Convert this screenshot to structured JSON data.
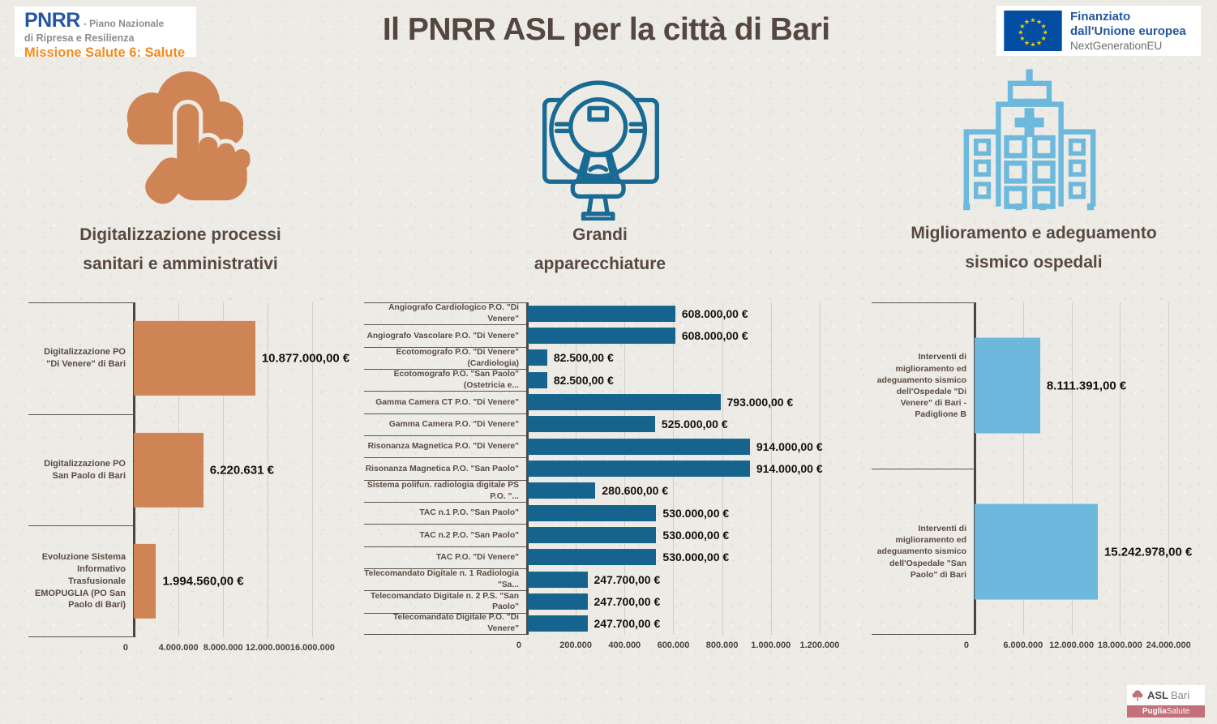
{
  "title": "Il PNRR ASL per la città di Bari",
  "logo_pnrr": {
    "name": "PNRR",
    "line1_suffix": "- Piano Nazionale",
    "line2": "di Ripresa e Resilienza",
    "line3": "Missione Salute 6: Salute",
    "colors": {
      "name_blue": "#2457a0",
      "mission_orange": "#f28b1f",
      "text_gray": "#8c8c8c"
    }
  },
  "logo_eu": {
    "line1": "Finanziato",
    "line2": "dall'Unione europea",
    "line3": "NextGenerationEU",
    "colors": {
      "flag_blue": "#034ea2",
      "stars_yellow": "#ffcc00",
      "text_blue": "#2457a0",
      "text_gray": "#6e6e6e"
    }
  },
  "footer_logo": {
    "name_bold": "ASL",
    "name_rest": "Bari",
    "band_bold": "Puglia",
    "band_rest": "Salute",
    "colors": {
      "band_pink": "#c4707a"
    }
  },
  "chart_data": [
    {
      "type": "bar",
      "orientation": "horizontal",
      "title": "Digitalizzazione processi\nsanitari e amministrativi",
      "icon": "cloud-touch-icon",
      "icon_color": "#cf8456",
      "bar_color": "#cf8456",
      "unit": "€",
      "grid": true,
      "legend": false,
      "xlim": [
        0,
        19600000
      ],
      "ticks": [
        {
          "value": 0,
          "label": "0"
        },
        {
          "value": 4000000,
          "label": "4.000.000"
        },
        {
          "value": 8000000,
          "label": "8.000.000"
        },
        {
          "value": 12000000,
          "label": "12.000.000"
        },
        {
          "value": 16000000,
          "label": "16.000.000"
        }
      ],
      "categories": [
        "Digitalizzazione PO \"Di Venere\" di Bari",
        "Digitalizzazione PO San Paolo di Bari",
        "Evoluzione Sistema Informativo Trasfusionale EMOPUGLIA (PO San Paolo di Bari)"
      ],
      "values": [
        10877000,
        6220631,
        1994560
      ],
      "value_labels": [
        "10.877.000,00 €",
        "6.220.631 €",
        "1.994.560,00 €"
      ]
    },
    {
      "type": "bar",
      "orientation": "horizontal",
      "title": "Grandi\napparecchiature",
      "icon": "mri-scanner-icon",
      "icon_color": "#1a6b94",
      "bar_color": "#16648e",
      "unit": "€",
      "grid": true,
      "legend": false,
      "xlim": [
        0,
        1300000
      ],
      "ticks": [
        {
          "value": 0,
          "label": "0"
        },
        {
          "value": 200000,
          "label": "200.000"
        },
        {
          "value": 400000,
          "label": "400.000"
        },
        {
          "value": 600000,
          "label": "600.000"
        },
        {
          "value": 800000,
          "label": "800.000"
        },
        {
          "value": 1000000,
          "label": "1.000.000"
        },
        {
          "value": 1200000,
          "label": "1.200.000"
        }
      ],
      "categories": [
        "Angiografo Cardiologico P.O. \"Di Venere\"",
        "Angiografo Vascolare P.O. \"Di Venere\"",
        "Ecotomografo P.O. \"Di Venere\" (Cardiologia)",
        "Ecotomografo P.O. \"San Paolo\" (Ostetricia e...",
        "Gamma Camera CT P.O. \"Di Venere\"",
        "Gamma Camera P.O. \"Di Venere\"",
        "Risonanza Magnetica P.O. \"Di Venere\"",
        "Risonanza Magnetica P.O. \"San Paolo\"",
        "Sistema polifun. radiologia digitale PS P.O. \"...",
        "TAC n.1 P.O. \"San Paolo\"",
        "TAC n.2 P.O. \"San Paolo\"",
        "TAC P.O. \"Di Venere\"",
        "Telecomandato Digitale n. 1 Radiologia \"Sa...",
        "Telecomandato Digitale n. 2 P.S. \"San Paolo\"",
        "Telecomandato Digitale P.O. \"Di Venere\""
      ],
      "values": [
        608000,
        608000,
        82500,
        82500,
        793000,
        525000,
        914000,
        914000,
        280600,
        530000,
        530000,
        530000,
        247700,
        247700,
        247700
      ],
      "value_labels": [
        "608.000,00 €",
        "608.000,00 €",
        "82.500,00 €",
        "82.500,00 €",
        "793.000,00 €",
        "525.000,00 €",
        "914.000,00 €",
        "914.000,00 €",
        "280.600,00 €",
        "530.000,00 €",
        "530.000,00 €",
        "530.000,00 €",
        "247.700,00 €",
        "247.700,00 €",
        "247.700,00 €"
      ]
    },
    {
      "type": "bar",
      "orientation": "horizontal",
      "title": "Miglioramento e adeguamento\nsismico  ospedali",
      "icon": "hospital-building-icon",
      "icon_color": "#6cb9dd",
      "bar_color": "#6cb9dd",
      "unit": "€",
      "grid": true,
      "legend": false,
      "xlim": [
        0,
        30000000
      ],
      "ticks": [
        {
          "value": 0,
          "label": "0"
        },
        {
          "value": 6000000,
          "label": "6.000.000"
        },
        {
          "value": 12000000,
          "label": "12.000.000"
        },
        {
          "value": 18000000,
          "label": "18.000.000"
        },
        {
          "value": 24000000,
          "label": "24.000.000"
        }
      ],
      "categories": [
        "Interventi di miglioramento ed adeguamento sismico dell'Ospedale \"Di Venere\" di Bari - Padiglione B",
        "Interventi di miglioramento ed adeguamento sismico dell'Ospedale \"San Paolo\" di Bari"
      ],
      "values": [
        8111391,
        15242978
      ],
      "value_labels": [
        "8.111.391,00 €",
        "15.242.978,00 €"
      ]
    }
  ]
}
